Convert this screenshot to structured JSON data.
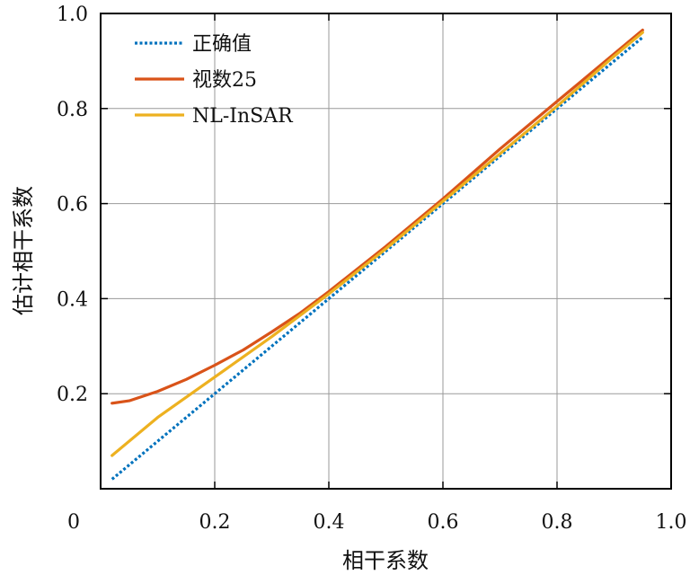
{
  "chart_data": {
    "type": "line",
    "title": "",
    "xlabel": "相干系数",
    "ylabel": "估计相干系数",
    "xlim": [
      0,
      1
    ],
    "ylim": [
      0,
      1
    ],
    "x_ticks": [
      "0",
      "0.2",
      "0.4",
      "0.6",
      "0.8",
      "1.0"
    ],
    "y_ticks": [
      "0.2",
      "0.4",
      "0.6",
      "0.8",
      "1.0"
    ],
    "grid": true,
    "legend_position": "top-left",
    "series": [
      {
        "name": "正确值",
        "color": "#0072BD",
        "style": "dotted",
        "x": [
          0.02,
          0.95
        ],
        "y": [
          0.02,
          0.95
        ]
      },
      {
        "name": "视数25",
        "color": "#D95319",
        "style": "solid",
        "x": [
          0.02,
          0.05,
          0.1,
          0.15,
          0.2,
          0.25,
          0.3,
          0.35,
          0.4,
          0.5,
          0.6,
          0.7,
          0.8,
          0.9,
          0.95
        ],
        "y": [
          0.18,
          0.185,
          0.205,
          0.23,
          0.26,
          0.292,
          0.33,
          0.37,
          0.415,
          0.51,
          0.61,
          0.715,
          0.815,
          0.915,
          0.965
        ]
      },
      {
        "name": "NL-InSAR",
        "color": "#EDB120",
        "style": "solid",
        "x": [
          0.02,
          0.1,
          0.2,
          0.3,
          0.4,
          0.5,
          0.6,
          0.7,
          0.8,
          0.9,
          0.95
        ],
        "y": [
          0.07,
          0.15,
          0.235,
          0.32,
          0.41,
          0.505,
          0.605,
          0.705,
          0.805,
          0.91,
          0.96
        ]
      }
    ]
  }
}
